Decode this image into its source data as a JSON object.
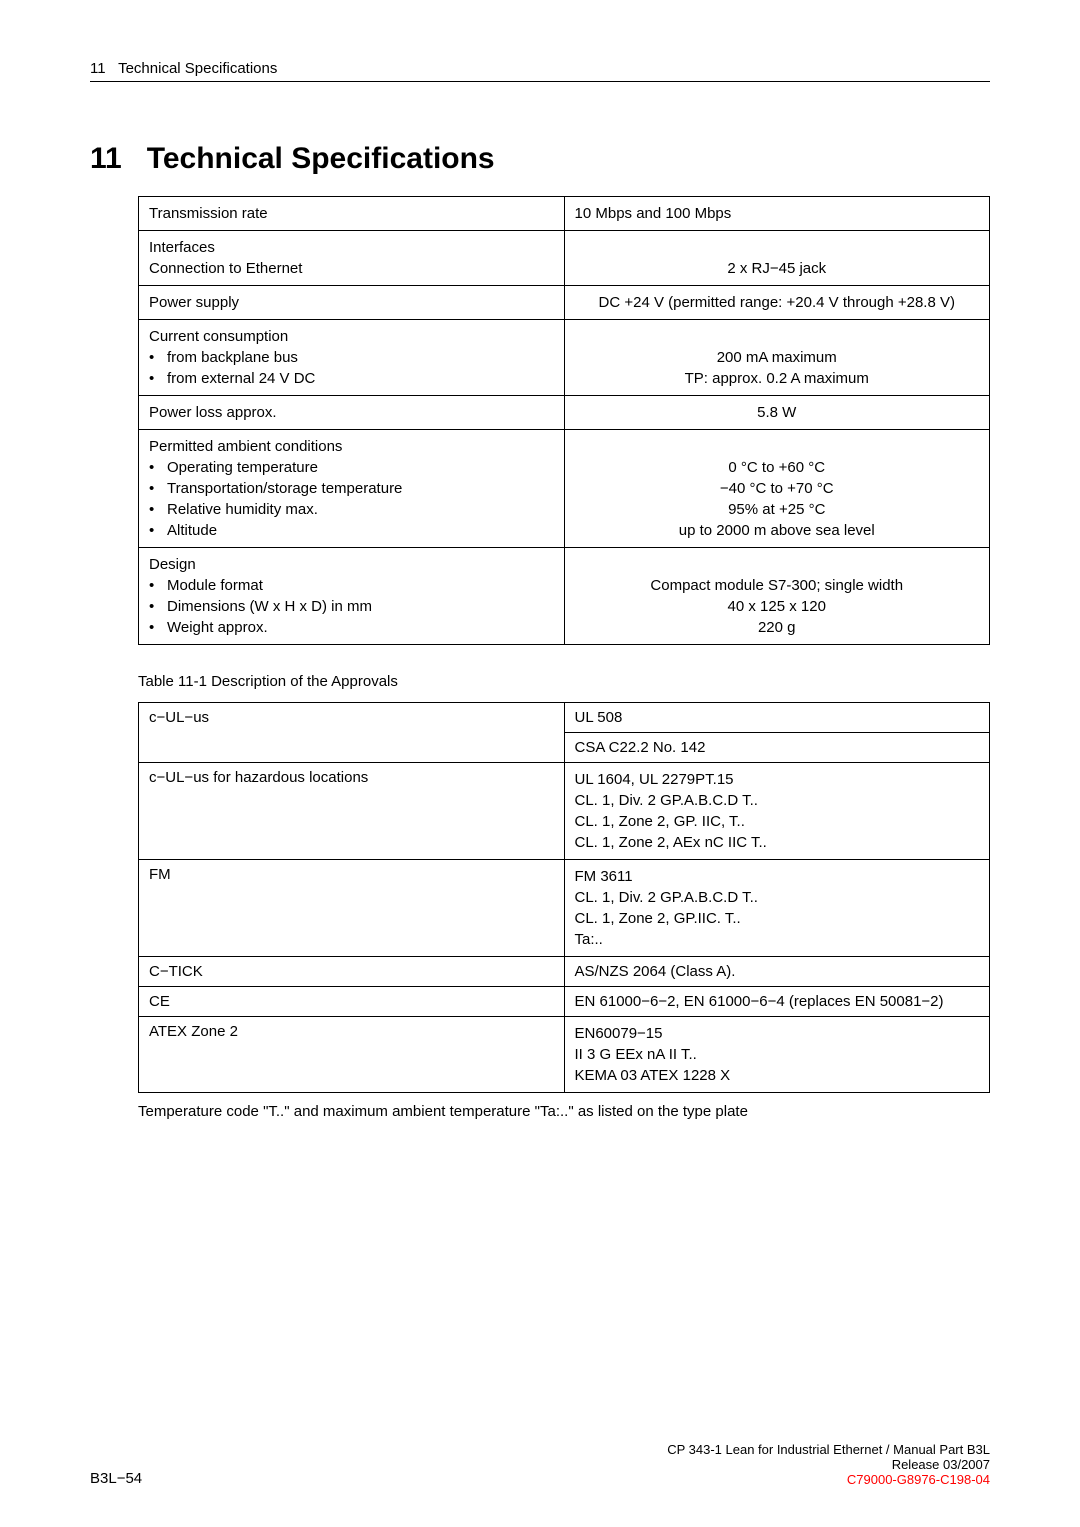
{
  "header": {
    "section_num": "11",
    "section_name": "Technical Specifications"
  },
  "title": {
    "num": "11",
    "text": "Technical Specifications"
  },
  "table1": {
    "rows": [
      {
        "left": [
          {
            "type": "plain",
            "text": "Transmission rate"
          }
        ],
        "right": [
          {
            "type": "plain",
            "text": "10 Mbps and 100 Mbps"
          }
        ],
        "right_align": "left"
      },
      {
        "left": [
          {
            "type": "plain",
            "text": "Interfaces"
          },
          {
            "type": "plain",
            "text": "Connection to Ethernet"
          }
        ],
        "right": [
          {
            "type": "plain",
            "text": ""
          },
          {
            "type": "plain",
            "text": "2 x RJ−45 jack"
          }
        ],
        "right_align": "center"
      },
      {
        "left": [
          {
            "type": "plain",
            "text": "Power supply"
          }
        ],
        "right": [
          {
            "type": "plain",
            "text": "DC +24 V (permitted range:  +20.4 V through +28.8 V)"
          }
        ],
        "right_align": "center"
      },
      {
        "left": [
          {
            "type": "plain",
            "text": "Current consumption"
          },
          {
            "type": "bullet",
            "text": "from backplane bus"
          },
          {
            "type": "bullet",
            "text": "from external 24 V DC"
          }
        ],
        "right": [
          {
            "type": "plain",
            "text": ""
          },
          {
            "type": "plain",
            "text": "200 mA maximum"
          },
          {
            "type": "plain",
            "text": "TP: approx. 0.2 A maximum"
          }
        ],
        "right_align": "center"
      },
      {
        "left": [
          {
            "type": "plain",
            "text": "Power loss approx."
          }
        ],
        "right": [
          {
            "type": "plain",
            "text": "5.8 W"
          }
        ],
        "right_align": "center"
      },
      {
        "left": [
          {
            "type": "plain",
            "text": "Permitted ambient conditions"
          },
          {
            "type": "bullet",
            "text": "Operating temperature"
          },
          {
            "type": "bullet",
            "text": "Transportation/storage temperature"
          },
          {
            "type": "bullet",
            "text": "Relative humidity max."
          },
          {
            "type": "bullet",
            "text": "Altitude"
          }
        ],
        "right": [
          {
            "type": "plain",
            "text": ""
          },
          {
            "type": "plain",
            "text": "0 °C to +60 °C"
          },
          {
            "type": "plain",
            "text": "−40 °C to +70 °C"
          },
          {
            "type": "plain",
            "text": "95% at +25 °C"
          },
          {
            "type": "plain",
            "text": "up to 2000 m above sea level"
          }
        ],
        "right_align": "center"
      },
      {
        "left": [
          {
            "type": "plain",
            "text": "Design"
          },
          {
            "type": "bullet",
            "text": "Module format"
          },
          {
            "type": "bullet",
            "text": "Dimensions (W x H x D) in mm"
          },
          {
            "type": "bullet",
            "text": "Weight approx."
          }
        ],
        "right": [
          {
            "type": "plain",
            "text": ""
          },
          {
            "type": "plain",
            "text": "Compact module S7-300; single width"
          },
          {
            "type": "plain",
            "text": "40 x 125 x 120"
          },
          {
            "type": "plain",
            "text": "220 g"
          }
        ],
        "right_align": "center"
      }
    ]
  },
  "caption2": "Table 11-1   Description of the Approvals",
  "table2": {
    "rows": [
      {
        "left": "c−UL−us",
        "right": "UL 508"
      },
      {
        "left": "",
        "right": "CSA C22.2 No. 142",
        "merge_top": true
      },
      {
        "left": "c−UL−us for hazardous locations",
        "right_lines": [
          "UL 1604, UL 2279PT.15",
          "CL. 1,  Div. 2 GP.A.B.C.D  T..",
          "CL. 1, Zone 2, GP. IIC,  T..",
          "CL. 1, Zone 2, AEx nC IIC T.."
        ]
      },
      {
        "left": "FM",
        "right_lines": [
          "FM 3611",
          "CL. 1,  Div. 2 GP.A.B.C.D  T..",
          "CL. 1,  Zone 2, GP.IIC. T..",
          "Ta:.."
        ]
      },
      {
        "left": "C−TICK",
        "right": "AS/NZS 2064 (Class A)."
      },
      {
        "left": "CE",
        "right": "EN 61000−6−2, EN 61000−6−4 (replaces EN 50081−2)"
      },
      {
        "left": "ATEX Zone 2",
        "right_lines": [
          "EN60079−15",
          "II 3 G EEx nA II T..",
          "KEMA 03 ATEX 1228 X"
        ]
      }
    ]
  },
  "footnote": "Temperature code \"T..\" and maximum ambient temperature  \"Ta:..\" as listed on the type plate",
  "footer": {
    "left": "B3L−54",
    "right1": "CP 343-1 Lean for Industrial Ethernet / Manual Part B3L",
    "right2": "Release 03/2007",
    "right3": "C79000-G8976-C198-04"
  }
}
